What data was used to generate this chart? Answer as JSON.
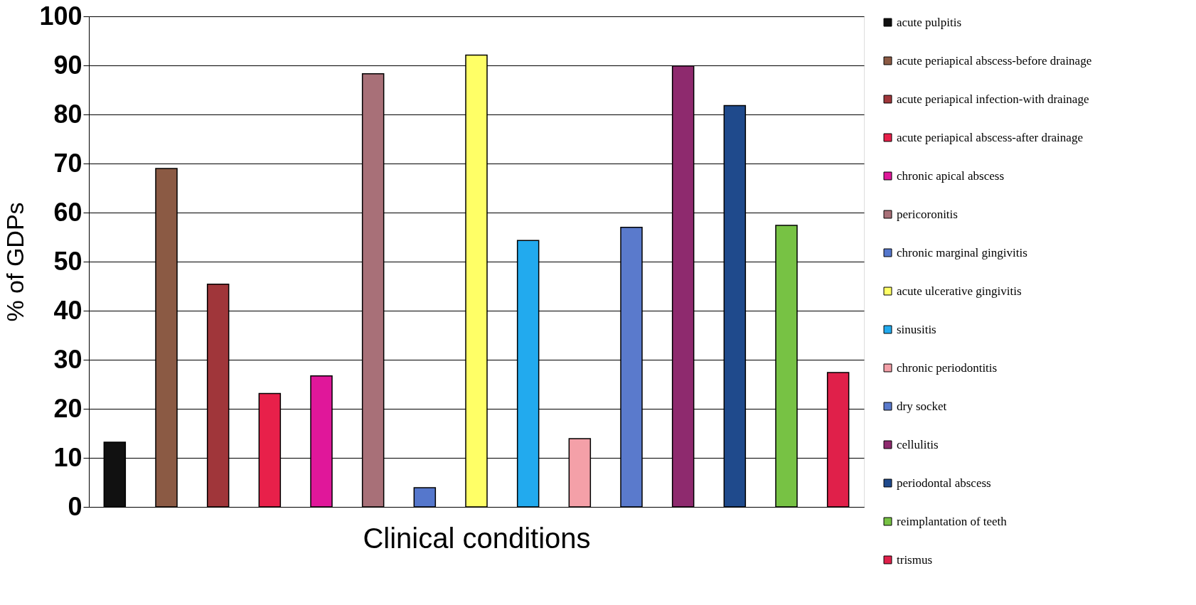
{
  "chart_data": {
    "type": "bar",
    "xlabel": "Clinical conditions",
    "ylabel": "% of GDPs",
    "categories": [
      null,
      null,
      null,
      null,
      null,
      null,
      null,
      null,
      null,
      null,
      null,
      null,
      null,
      null,
      null
    ],
    "series": [
      {
        "name": "acute pulpitis",
        "color": "#111111",
        "values": [
          13.2,
          null,
          null,
          null,
          null,
          null,
          null,
          null,
          null,
          null,
          null,
          null,
          null,
          null,
          null
        ]
      },
      {
        "name": "acute periapical abscess-before drainage",
        "color": "#8b5a44",
        "values": [
          null,
          69.0,
          null,
          null,
          null,
          null,
          null,
          null,
          null,
          null,
          null,
          null,
          null,
          null,
          null
        ]
      },
      {
        "name": "acute periapical infection-with drainage",
        "color": "#a0363a",
        "values": [
          null,
          null,
          45.4,
          null,
          null,
          null,
          null,
          null,
          null,
          null,
          null,
          null,
          null,
          null,
          null
        ]
      },
      {
        "name": "acute periapical abscess-after drainage",
        "color": "#e8204a",
        "values": [
          null,
          null,
          null,
          23.1,
          null,
          null,
          null,
          null,
          null,
          null,
          null,
          null,
          null,
          null,
          null
        ]
      },
      {
        "name": "chronic apical abscess",
        "color": "#e0179a",
        "values": [
          null,
          null,
          null,
          null,
          26.7,
          null,
          null,
          null,
          null,
          null,
          null,
          null,
          null,
          null,
          null
        ]
      },
      {
        "name": "pericoronitis",
        "color": "#a87078",
        "values": [
          null,
          null,
          null,
          null,
          null,
          88.3,
          null,
          null,
          null,
          null,
          null,
          null,
          null,
          null,
          null
        ]
      },
      {
        "name": "chronic marginal gingivitis",
        "color": "#5577cc",
        "values": [
          null,
          null,
          null,
          null,
          null,
          null,
          3.9,
          null,
          null,
          null,
          null,
          null,
          null,
          null,
          null
        ]
      },
      {
        "name": "acute ulcerative gingivitis",
        "color": "#ffff66",
        "values": [
          null,
          null,
          null,
          null,
          null,
          null,
          null,
          92.1,
          null,
          null,
          null,
          null,
          null,
          null,
          null
        ]
      },
      {
        "name": "sinusitis",
        "color": "#22aaee",
        "values": [
          null,
          null,
          null,
          null,
          null,
          null,
          null,
          null,
          54.3,
          null,
          null,
          null,
          null,
          null,
          null
        ]
      },
      {
        "name": "chronic periodontitis",
        "color": "#f4a0a8",
        "values": [
          null,
          null,
          null,
          null,
          null,
          null,
          null,
          null,
          null,
          13.9,
          null,
          null,
          null,
          null,
          null
        ]
      },
      {
        "name": "dry socket",
        "color": "#5a7acc",
        "values": [
          null,
          null,
          null,
          null,
          null,
          null,
          null,
          null,
          null,
          null,
          57.0,
          null,
          null,
          null,
          null
        ]
      },
      {
        "name": "cellulitis",
        "color": "#8e2a6e",
        "values": [
          null,
          null,
          null,
          null,
          null,
          null,
          null,
          null,
          null,
          null,
          null,
          89.9,
          null,
          null,
          null
        ]
      },
      {
        "name": "periodontal abscess",
        "color": "#1f4a8c",
        "values": [
          null,
          null,
          null,
          null,
          null,
          null,
          null,
          null,
          null,
          null,
          null,
          null,
          81.8,
          null,
          null
        ]
      },
      {
        "name": "reimplantation of teeth",
        "color": "#77c244",
        "values": [
          null,
          null,
          null,
          null,
          null,
          null,
          null,
          null,
          null,
          null,
          null,
          null,
          null,
          57.4,
          null
        ]
      },
      {
        "name": "trismus",
        "color": "#e0204a",
        "values": [
          null,
          null,
          null,
          null,
          null,
          null,
          null,
          null,
          null,
          null,
          null,
          null,
          null,
          null,
          27.4
        ]
      }
    ],
    "ylim": [
      0,
      100
    ],
    "yticks": [
      0,
      10,
      20,
      30,
      40,
      50,
      60,
      70,
      80,
      90,
      100
    ],
    "grid": "y",
    "legend": "right",
    "tick_labels": "y"
  }
}
